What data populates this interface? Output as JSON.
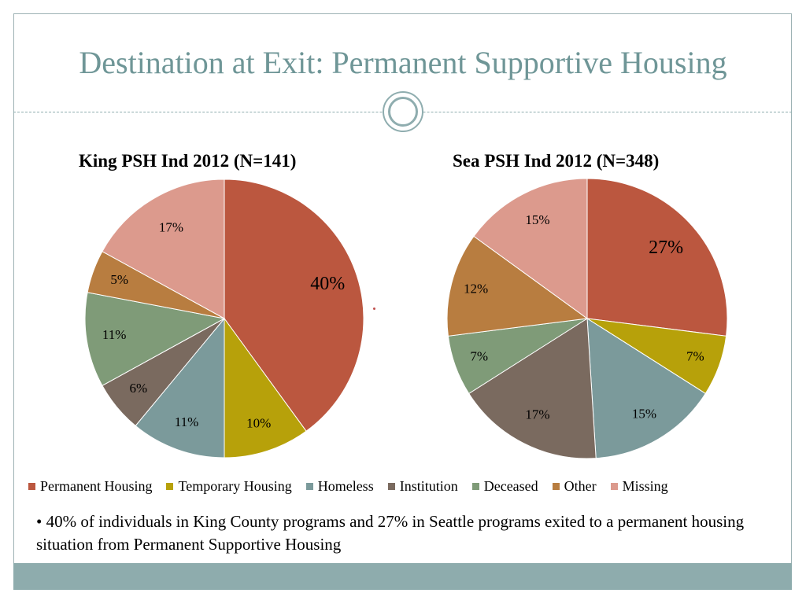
{
  "slide": {
    "title": "Destination at Exit:  Permanent Supportive Housing",
    "bullet": "•  40% of individuals  in King County programs and 27% in Seattle programs exited to a permanent housing situation from Permanent Supportive Housing"
  },
  "legend": [
    {
      "label": "Permanent Housing",
      "color": "#bb573f"
    },
    {
      "label": "Temporary Housing",
      "color": "#b7a10a"
    },
    {
      "label": "Homeless",
      "color": "#7b9a9b"
    },
    {
      "label": "Institution",
      "color": "#7a6a5f"
    },
    {
      "label": "Deceased",
      "color": "#7f9b78"
    },
    {
      "label": "Other",
      "color": "#b87d40"
    },
    {
      "label": "Missing",
      "color": "#dc9a8d"
    }
  ],
  "chart_data": [
    {
      "type": "pie",
      "title": "King PSH Ind 2012 (N=141)",
      "categories": [
        "Permanent Housing",
        "Temporary Housing",
        "Homeless",
        "Institution",
        "Deceased",
        "Other",
        "Missing"
      ],
      "values": [
        40,
        10,
        11,
        6,
        11,
        5,
        17
      ],
      "labels": [
        "40%",
        "10%",
        "11%",
        "6%",
        "11%",
        "5%",
        "17%"
      ],
      "colors": [
        "#bb573f",
        "#b7a10a",
        "#7b9a9b",
        "#7a6a5f",
        "#7f9b78",
        "#b87d40",
        "#dc9a8d"
      ],
      "legend": "bottom"
    },
    {
      "type": "pie",
      "title": "Sea PSH Ind 2012 (N=348)",
      "categories": [
        "Permanent Housing",
        "Temporary Housing",
        "Homeless",
        "Institution",
        "Deceased",
        "Other",
        "Missing"
      ],
      "values": [
        27,
        7,
        15,
        17,
        7,
        12,
        15
      ],
      "labels": [
        "27%",
        "7%",
        "15%",
        "17%",
        "7%",
        "12%",
        "15%"
      ],
      "colors": [
        "#bb573f",
        "#b7a10a",
        "#7b9a9b",
        "#7a6a5f",
        "#7f9b78",
        "#b87d40",
        "#dc9a8d"
      ],
      "legend": "bottom"
    }
  ]
}
